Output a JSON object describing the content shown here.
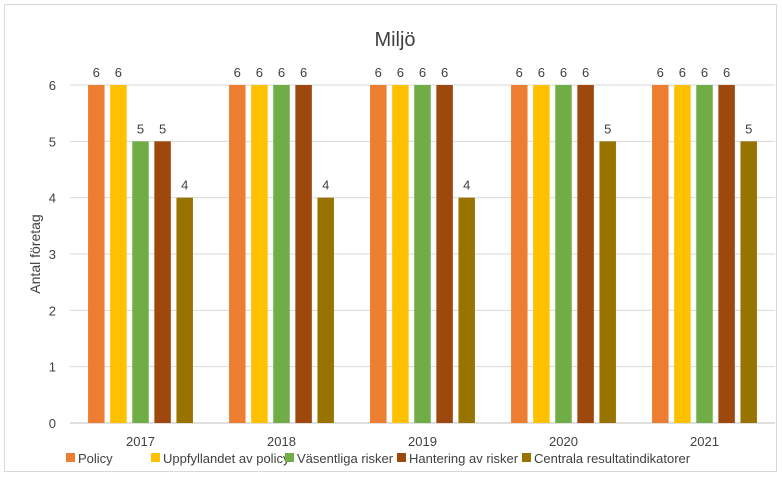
{
  "chart_data": {
    "type": "bar",
    "title": "Miljö",
    "xlabel": "",
    "ylabel": "Antal företag",
    "ylim": [
      0,
      6
    ],
    "yticks": [
      0,
      1,
      2,
      3,
      4,
      5,
      6
    ],
    "grid": true,
    "legend_position": "bottom",
    "categories": [
      "2017",
      "2018",
      "2019",
      "2020",
      "2021"
    ],
    "series": [
      {
        "name": "Policy",
        "color": "#ED7D31",
        "values": [
          6,
          6,
          6,
          6,
          6
        ]
      },
      {
        "name": "Uppfyllandet av policy",
        "color": "#FFC000",
        "values": [
          6,
          6,
          6,
          6,
          6
        ]
      },
      {
        "name": "Väsentliga risker",
        "color": "#70AD47",
        "values": [
          5,
          6,
          6,
          6,
          6
        ]
      },
      {
        "name": "Hantering av risker",
        "color": "#9E480E",
        "values": [
          5,
          6,
          6,
          6,
          6
        ]
      },
      {
        "name": "Centrala resultatindikatorer",
        "color": "#997300",
        "values": [
          4,
          4,
          4,
          5,
          5
        ]
      }
    ]
  }
}
